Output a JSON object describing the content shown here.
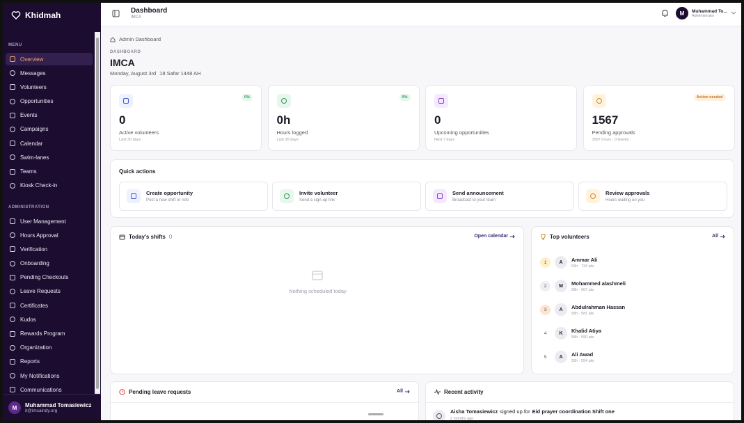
{
  "sidebar": {
    "brand": "Khidmah",
    "menu_label": "MENU",
    "menu": [
      "Overview",
      "Messages",
      "Volunteers",
      "Opportunities",
      "Events",
      "Campaigns",
      "Calendar",
      "Swim-lanes",
      "Teams",
      "Kiosk Check-in"
    ],
    "admin_label": "ADMINISTRATION",
    "admin": [
      "User Management",
      "Hours Approval",
      "Verification",
      "Onboarding",
      "Pending Checkouts",
      "Leave Requests",
      "Certificates",
      "Kudos",
      "Rewards Program",
      "Organization",
      "Reports",
      "My Notifications",
      "Communications"
    ],
    "user": {
      "initial": "M",
      "name": "Muhammad Tomasiewicz",
      "email": "it@imcaindy.org"
    }
  },
  "header": {
    "title": "Dashboard",
    "subtitle": "IMCA",
    "user_initial": "M",
    "user_name": "Muhammad To...",
    "user_role": "Administrator"
  },
  "page": {
    "breadcrumb": "Admin Dashboard",
    "eyebrow": "DASHBOARD",
    "org": "IMCA",
    "date": "Monday, August 3rd",
    "hijri": "18 Safar 1448 AH"
  },
  "stats": [
    {
      "badge": "0%",
      "value": "0",
      "label": "Active volunteers",
      "sub": "Last 30 days"
    },
    {
      "badge": "0%",
      "value": "0h",
      "label": "Hours logged",
      "sub": "Last 30 days"
    },
    {
      "value": "0",
      "label": "Upcoming opportunities",
      "sub": "Next 7 days"
    },
    {
      "badge": "Action needed",
      "value": "1567",
      "label": "Pending approvals",
      "sub": "1567 hours · 0 leaves"
    }
  ],
  "quick_actions": {
    "title": "Quick actions",
    "items": [
      {
        "title": "Create opportunity",
        "desc": "Post a new shift or role"
      },
      {
        "title": "Invite volunteer",
        "desc": "Send a sign-up link"
      },
      {
        "title": "Send announcement",
        "desc": "Broadcast to your team"
      },
      {
        "title": "Review approvals",
        "desc": "Hours waiting on you"
      }
    ]
  },
  "shifts": {
    "title": "Today's shifts",
    "count": "0",
    "link": "Open calendar",
    "empty": "Nothing scheduled today"
  },
  "top_volunteers": {
    "title": "Top volunteers",
    "link": "All",
    "items": [
      {
        "rank": "1",
        "initial": "A",
        "name": "Ammar Ali",
        "meta": "69h · 734 pts"
      },
      {
        "rank": "2",
        "initial": "M",
        "name": "Mohammed alashmeli",
        "meta": "69h · 607 pts"
      },
      {
        "rank": "3",
        "initial": "A",
        "name": "Abdulrahman Hassan",
        "meta": "58h · 581 pts"
      },
      {
        "rank": "4",
        "initial": "K",
        "name": "Khalid Atiya",
        "meta": "58h · 590 pts"
      },
      {
        "rank": "5",
        "initial": "A",
        "name": "Ali Awad",
        "meta": "55h · 554 pts"
      }
    ]
  },
  "leave": {
    "title": "Pending leave requests",
    "link": "All"
  },
  "activity": {
    "title": "Recent activity",
    "items": [
      {
        "actor": "Aisha Tomasiewicz",
        "text": "signed up for",
        "target": "Eid prayer coordination Shift one",
        "time": "2 months ago"
      }
    ]
  }
}
